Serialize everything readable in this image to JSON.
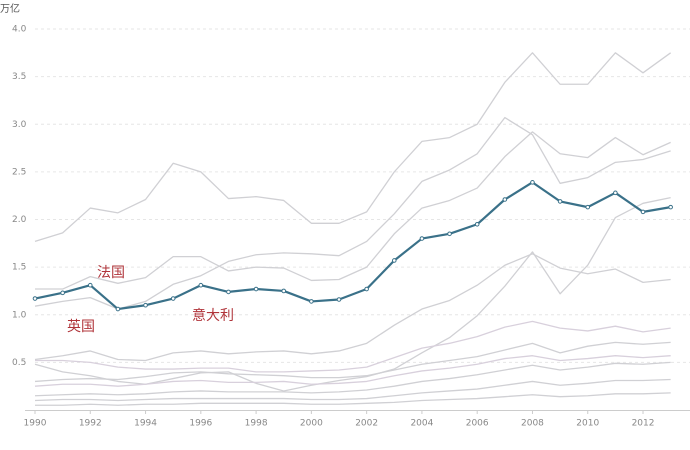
{
  "chart_data": {
    "type": "line",
    "y_label": "万亿",
    "annotations": [
      "法国",
      "英国",
      "意大利"
    ],
    "x": [
      1990,
      1991,
      1992,
      1993,
      1994,
      1995,
      1996,
      1997,
      1998,
      1999,
      2000,
      2001,
      2002,
      2003,
      2004,
      2005,
      2006,
      2007,
      2008,
      2009,
      2010,
      2011,
      2012,
      2013
    ],
    "xlim": [
      1990,
      2013.7
    ],
    "xticks": [
      1990,
      1992,
      1994,
      1996,
      1998,
      2000,
      2002,
      2004,
      2006,
      2008,
      2010,
      2012
    ],
    "ylim": [
      0,
      4
    ],
    "yticks": [
      0.5,
      {
        "value": 1,
        "label": "1.0"
      },
      1.5,
      {
        "value": 2,
        "label": "2.0"
      },
      2.5,
      {
        "value": 3,
        "label": "3.0"
      },
      3.5,
      {
        "value": 4,
        "label": "4.0"
      }
    ],
    "grid": true,
    "series": [
      {
        "color": "#d0d0d4",
        "values": [
          1.77,
          1.86,
          2.12,
          2.07,
          2.21,
          2.59,
          2.5,
          2.22,
          2.24,
          2.2,
          1.96,
          1.96,
          2.08,
          2.5,
          2.82,
          2.86,
          3.0,
          3.44,
          3.75,
          3.42,
          3.42,
          3.75,
          3.54,
          3.75
        ]
      },
      {
        "color": "#d0d0d4",
        "values": [
          1.27,
          1.27,
          1.4,
          1.33,
          1.39,
          1.61,
          1.61,
          1.46,
          1.5,
          1.49,
          1.36,
          1.37,
          1.5,
          1.85,
          2.12,
          2.2,
          2.33,
          2.66,
          2.92,
          2.69,
          2.65,
          2.86,
          2.68,
          2.81
        ]
      },
      {
        "color": "#d0d0d4",
        "values": [
          1.09,
          1.14,
          1.18,
          1.06,
          1.14,
          1.32,
          1.41,
          1.56,
          1.63,
          1.65,
          1.64,
          1.62,
          1.77,
          2.06,
          2.4,
          2.52,
          2.69,
          3.07,
          2.89,
          2.38,
          2.44,
          2.6,
          2.63,
          2.72
        ]
      },
      {
        "color": "#d0d0d4",
        "values": [
          0.48,
          0.4,
          0.36,
          0.3,
          0.27,
          0.33,
          0.39,
          0.4,
          0.28,
          0.2,
          0.26,
          0.31,
          0.35,
          0.43,
          0.6,
          0.76,
          0.99,
          1.3,
          1.66,
          1.22,
          1.52,
          2.02,
          2.17,
          2.23
        ]
      },
      {
        "color": "#d0d0d4",
        "values": [
          0.53,
          0.57,
          0.62,
          0.53,
          0.52,
          0.6,
          0.62,
          0.59,
          0.61,
          0.62,
          0.59,
          0.62,
          0.7,
          0.89,
          1.06,
          1.15,
          1.31,
          1.52,
          1.64,
          1.49,
          1.43,
          1.48,
          1.34,
          1.37
        ]
      },
      {
        "color": "#d8d0dc",
        "values": [
          0.52,
          0.52,
          0.5,
          0.45,
          0.43,
          0.43,
          0.44,
          0.44,
          0.4,
          0.4,
          0.41,
          0.42,
          0.45,
          0.55,
          0.65,
          0.7,
          0.77,
          0.87,
          0.93,
          0.86,
          0.83,
          0.88,
          0.82,
          0.86
        ]
      },
      {
        "color": "#d0d0d4",
        "values": [
          0.3,
          0.32,
          0.33,
          0.32,
          0.35,
          0.39,
          0.4,
          0.38,
          0.37,
          0.36,
          0.34,
          0.34,
          0.36,
          0.42,
          0.48,
          0.52,
          0.56,
          0.63,
          0.7,
          0.6,
          0.67,
          0.71,
          0.69,
          0.71
        ]
      },
      {
        "color": "#d8d0dc",
        "values": [
          0.25,
          0.27,
          0.27,
          0.25,
          0.27,
          0.3,
          0.31,
          0.29,
          0.29,
          0.3,
          0.27,
          0.28,
          0.3,
          0.36,
          0.41,
          0.44,
          0.48,
          0.54,
          0.57,
          0.52,
          0.54,
          0.57,
          0.55,
          0.57
        ]
      },
      {
        "color": "#d0d0d4",
        "values": [
          0.15,
          0.16,
          0.17,
          0.16,
          0.17,
          0.19,
          0.2,
          0.19,
          0.19,
          0.19,
          0.18,
          0.19,
          0.21,
          0.25,
          0.3,
          0.33,
          0.37,
          0.42,
          0.47,
          0.42,
          0.45,
          0.49,
          0.48,
          0.5
        ]
      },
      {
        "color": "#d0d0d4",
        "values": [
          0.1,
          0.11,
          0.11,
          0.1,
          0.11,
          0.12,
          0.12,
          0.12,
          0.12,
          0.12,
          0.11,
          0.11,
          0.12,
          0.15,
          0.18,
          0.2,
          0.22,
          0.26,
          0.3,
          0.26,
          0.28,
          0.31,
          0.31,
          0.32
        ]
      },
      {
        "color": "#d0d0d4",
        "values": [
          0.05,
          0.05,
          0.06,
          0.05,
          0.06,
          0.06,
          0.07,
          0.07,
          0.07,
          0.07,
          0.06,
          0.06,
          0.07,
          0.08,
          0.1,
          0.11,
          0.12,
          0.14,
          0.16,
          0.14,
          0.15,
          0.17,
          0.17,
          0.18
        ]
      },
      {
        "color": "#3a7189",
        "highlight": true,
        "values": [
          1.17,
          1.23,
          1.31,
          1.06,
          1.1,
          1.17,
          1.31,
          1.24,
          1.27,
          1.25,
          1.14,
          1.16,
          1.27,
          1.57,
          1.8,
          1.85,
          1.95,
          2.21,
          2.39,
          2.19,
          2.13,
          2.28,
          2.08,
          2.13
        ]
      }
    ]
  }
}
